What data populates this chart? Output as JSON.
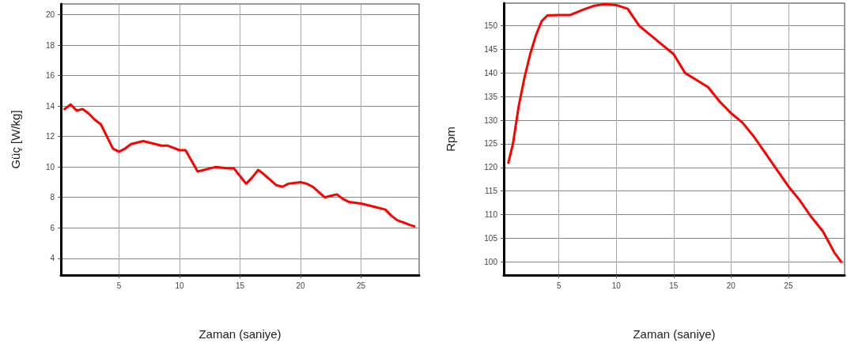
{
  "chart_data": [
    {
      "type": "line",
      "xlabel": "Zaman (saniye)",
      "ylabel": "Güç [W/kg]",
      "xlim": [
        0.2,
        29.8
      ],
      "xticks": [
        5,
        10,
        15,
        20,
        25
      ],
      "ylim": [
        2.9,
        20.7
      ],
      "yticks": [
        4,
        6,
        8,
        10,
        12,
        14,
        16,
        18,
        20
      ],
      "grid": true,
      "marker": "none",
      "line_style": "solid",
      "series": [
        {
          "color": "#ff0000",
          "x": [
            0.5,
            1,
            1.5,
            2,
            2.5,
            3,
            3.5,
            4,
            4.5,
            5,
            5.5,
            6,
            7,
            8,
            8.5,
            9,
            10,
            10.5,
            11,
            11.5,
            12,
            12.5,
            13,
            14,
            14.5,
            15,
            15.5,
            16,
            16.5,
            17,
            18,
            18.5,
            19,
            20,
            20.5,
            21,
            22,
            22.5,
            23,
            23.5,
            24,
            25,
            26,
            27,
            27.5,
            28,
            29,
            29.4
          ],
          "values": [
            13.8,
            14.1,
            13.7,
            13.8,
            13.5,
            13.1,
            12.8,
            12.0,
            11.2,
            11.0,
            11.2,
            11.5,
            11.7,
            11.5,
            11.4,
            11.4,
            11.1,
            11.1,
            10.4,
            9.7,
            9.8,
            9.9,
            10.0,
            9.9,
            9.9,
            9.4,
            8.9,
            9.3,
            9.8,
            9.5,
            8.8,
            8.7,
            8.9,
            9.0,
            8.9,
            8.7,
            8.0,
            8.1,
            8.2,
            7.9,
            7.7,
            7.6,
            7.4,
            7.2,
            6.8,
            6.5,
            6.2,
            6.1
          ]
        }
      ]
    },
    {
      "type": "line",
      "xlabel": "Zaman (saniye)",
      "ylabel": "Rpm",
      "xlim": [
        0.2,
        29.9
      ],
      "xticks": [
        5,
        10,
        15,
        20,
        25
      ],
      "ylim": [
        97.2,
        154.8
      ],
      "yticks": [
        100,
        105,
        110,
        115,
        120,
        125,
        130,
        135,
        140,
        145,
        150
      ],
      "grid": true,
      "marker": "none",
      "line_style": "solid",
      "series": [
        {
          "color": "#ff0000",
          "x": [
            0.6,
            1,
            1.5,
            2,
            2.5,
            3,
            3.5,
            4,
            5,
            6,
            7,
            8,
            9,
            10,
            11,
            12,
            13,
            14,
            15,
            16,
            17,
            18,
            19,
            20,
            21,
            22,
            23,
            24,
            25,
            26,
            27,
            28,
            29,
            29.6
          ],
          "values": [
            121,
            125,
            133,
            139,
            144,
            148,
            151,
            152.2,
            152.3,
            152.3,
            153.3,
            154.2,
            154.6,
            154.4,
            153.6,
            150,
            148,
            146,
            144,
            140,
            138.5,
            137,
            134,
            131.5,
            129.5,
            126.5,
            123,
            119.5,
            116,
            113,
            109.5,
            106.5,
            102,
            100
          ]
        }
      ]
    }
  ]
}
